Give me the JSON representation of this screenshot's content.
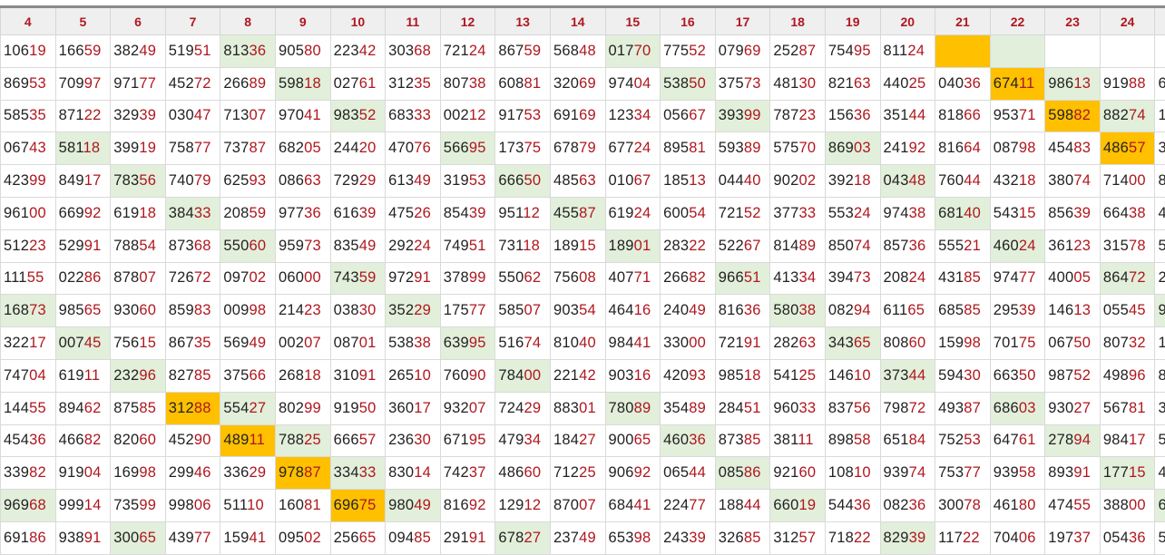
{
  "columns": [
    "4",
    "5",
    "6",
    "7",
    "8",
    "9",
    "10",
    "11",
    "12",
    "13",
    "14",
    "15",
    "16",
    "17",
    "18",
    "19",
    "20",
    "21",
    "22",
    "23",
    "24",
    ""
  ],
  "colors": {
    "accent_red": "#b0171f",
    "highlight_green": "#e2efda",
    "highlight_orange": "#ffc000",
    "header_bg": "#efefef"
  },
  "rows": [
    [
      "10619",
      "16659",
      "38249",
      "51951",
      {
        "v": "81336",
        "bg": "green"
      },
      "90580",
      "22342",
      "30368",
      "72124",
      "86759",
      "56848",
      {
        "v": "01770",
        "bg": "green"
      },
      "77552",
      "07969",
      "25287",
      "75495",
      "81124",
      {
        "v": "",
        "bg": "orange"
      },
      {
        "v": "",
        "bg": "green"
      },
      "",
      "",
      ""
    ],
    [
      "86953",
      "70997",
      "97177",
      "45272",
      "26689",
      {
        "v": "59818",
        "bg": "green"
      },
      "02761",
      "31235",
      "80738",
      "60881",
      "32069",
      "97404",
      {
        "v": "53850",
        "bg": "green"
      },
      "37573",
      "48130",
      "82163",
      "44025",
      "04036",
      {
        "v": "67411",
        "bg": "orange"
      },
      {
        "v": "98613",
        "bg": "green"
      },
      "91988",
      "6"
    ],
    [
      "58535",
      "87122",
      "32939",
      "03047",
      "71307",
      "97041",
      {
        "v": "98352",
        "bg": "green"
      },
      "68333",
      "00212",
      "91753",
      "69169",
      "12334",
      "05667",
      {
        "v": "39399",
        "bg": "green"
      },
      "78723",
      "15636",
      "35144",
      "81866",
      "95371",
      {
        "v": "59882",
        "bg": "orange"
      },
      {
        "v": "88274",
        "bg": "green"
      },
      "1"
    ],
    [
      "06743",
      {
        "v": "58118",
        "bg": "green"
      },
      "39919",
      "75877",
      "73787",
      "68205",
      "24420",
      "47076",
      {
        "v": "56695",
        "bg": "green"
      },
      "17375",
      "67879",
      "67724",
      "89581",
      "59389",
      "57570",
      {
        "v": "86903",
        "bg": "green"
      },
      "24192",
      "81664",
      "08798",
      "45483",
      {
        "v": "48657",
        "bg": "orange"
      },
      "3"
    ],
    [
      "42399",
      "84917",
      {
        "v": "78356",
        "bg": "green"
      },
      "74079",
      "62593",
      "08663",
      "72929",
      "61349",
      "31953",
      {
        "v": "66650",
        "bg": "green"
      },
      "48563",
      "01067",
      "18513",
      "04440",
      "90202",
      "39218",
      {
        "v": "04348",
        "bg": "green"
      },
      "76044",
      "43218",
      "38074",
      "71400",
      "8"
    ],
    [
      "96100",
      "66992",
      "61918",
      {
        "v": "38433",
        "bg": "green"
      },
      "20859",
      "97736",
      "61639",
      "47526",
      "85439",
      "95112",
      {
        "v": "45587",
        "bg": "green"
      },
      "61924",
      "60054",
      "72152",
      "37733",
      "55324",
      "97438",
      {
        "v": "68140",
        "bg": "green"
      },
      "54315",
      "85639",
      "66438",
      "4"
    ],
    [
      "51223",
      "52991",
      "78854",
      "87368",
      {
        "v": "55060",
        "bg": "green"
      },
      "95973",
      "83549",
      "29224",
      "74951",
      "73118",
      "18915",
      {
        "v": "18901",
        "bg": "green"
      },
      "28322",
      "52267",
      "81489",
      "85074",
      "85736",
      "55521",
      {
        "v": "46024",
        "bg": "green"
      },
      "36123",
      "31578",
      "5"
    ],
    [
      "11155",
      "02286",
      "87807",
      "72672",
      "09702",
      "06000",
      {
        "v": "74359",
        "bg": "green"
      },
      "97291",
      "37899",
      "55062",
      "75608",
      "40771",
      "26682",
      {
        "v": "96651",
        "bg": "green"
      },
      "41334",
      "39473",
      "20824",
      "43185",
      "97477",
      "40005",
      {
        "v": "86472",
        "bg": "green"
      },
      "2"
    ],
    [
      {
        "v": "16873",
        "bg": "green"
      },
      "98565",
      "93060",
      "85983",
      "00998",
      "21423",
      "03830",
      {
        "v": "35229",
        "bg": "green"
      },
      "17577",
      "58507",
      "90354",
      "46416",
      "24049",
      "81636",
      {
        "v": "58038",
        "bg": "green"
      },
      "08294",
      "61165",
      "68585",
      "29539",
      "14613",
      "05545",
      {
        "v": "9",
        "bg": "green"
      }
    ],
    [
      "32217",
      {
        "v": "00745",
        "bg": "green"
      },
      "75615",
      "86735",
      "56949",
      "00207",
      "08701",
      "53838",
      {
        "v": "63995",
        "bg": "green"
      },
      "51674",
      "81040",
      "98441",
      "33000",
      "72191",
      "28263",
      {
        "v": "34365",
        "bg": "green"
      },
      "80860",
      "15998",
      "70175",
      "06750",
      "80732",
      "1"
    ],
    [
      "74704",
      "61911",
      {
        "v": "23296",
        "bg": "green"
      },
      "82785",
      "37566",
      "26818",
      "31091",
      "26510",
      "76090",
      {
        "v": "78400",
        "bg": "green"
      },
      "22142",
      "90316",
      "42093",
      "98518",
      "54125",
      "14610",
      {
        "v": "37344",
        "bg": "green"
      },
      "59430",
      "66350",
      "98752",
      "49896",
      "8"
    ],
    [
      "14455",
      "89462",
      "87585",
      {
        "v": "31288",
        "bg": "orange"
      },
      {
        "v": "55427",
        "bg": "green"
      },
      "80299",
      "91950",
      "36017",
      "93207",
      "72429",
      "88301",
      {
        "v": "78089",
        "bg": "green"
      },
      "35489",
      "28451",
      "96033",
      "83756",
      "79872",
      "49387",
      {
        "v": "68603",
        "bg": "green"
      },
      "93027",
      "56781",
      "3"
    ],
    [
      "45436",
      "46682",
      "82060",
      "45290",
      {
        "v": "48911",
        "bg": "orange"
      },
      {
        "v": "78825",
        "bg": "green"
      },
      "66657",
      "23630",
      "67195",
      "47934",
      "18427",
      "90065",
      {
        "v": "46036",
        "bg": "green"
      },
      "87385",
      "38111",
      "89858",
      "65184",
      "75253",
      "64761",
      {
        "v": "27894",
        "bg": "green"
      },
      "98417",
      "5"
    ],
    [
      "33982",
      "91904",
      "16998",
      "29946",
      "33629",
      {
        "v": "97887",
        "bg": "orange"
      },
      {
        "v": "33433",
        "bg": "green"
      },
      "83014",
      "74237",
      "48660",
      "71225",
      "90692",
      "06544",
      {
        "v": "08586",
        "bg": "green"
      },
      "92160",
      "10810",
      "93974",
      "75377",
      "93958",
      "89391",
      {
        "v": "17715",
        "bg": "green"
      },
      "4"
    ],
    [
      {
        "v": "96968",
        "bg": "green"
      },
      "99914",
      "73599",
      "99806",
      "51110",
      "16081",
      {
        "v": "69675",
        "bg": "orange"
      },
      {
        "v": "98049",
        "bg": "green"
      },
      "81692",
      "12912",
      "87007",
      "68441",
      "22477",
      "18844",
      {
        "v": "66019",
        "bg": "green"
      },
      "54436",
      "08236",
      "30078",
      "46180",
      "47455",
      "38800",
      {
        "v": "6",
        "bg": "green"
      }
    ],
    [
      "69186",
      "93891",
      {
        "v": "30065",
        "bg": "green"
      },
      "43977",
      "15941",
      "09502",
      "25665",
      "09485",
      "29191",
      {
        "v": "67827",
        "bg": "green"
      },
      "23749",
      "65398",
      "24339",
      "32685",
      "31257",
      "71822",
      {
        "v": "82939",
        "bg": "green"
      },
      "11722",
      "70406",
      "19737",
      "05436",
      "5"
    ]
  ]
}
